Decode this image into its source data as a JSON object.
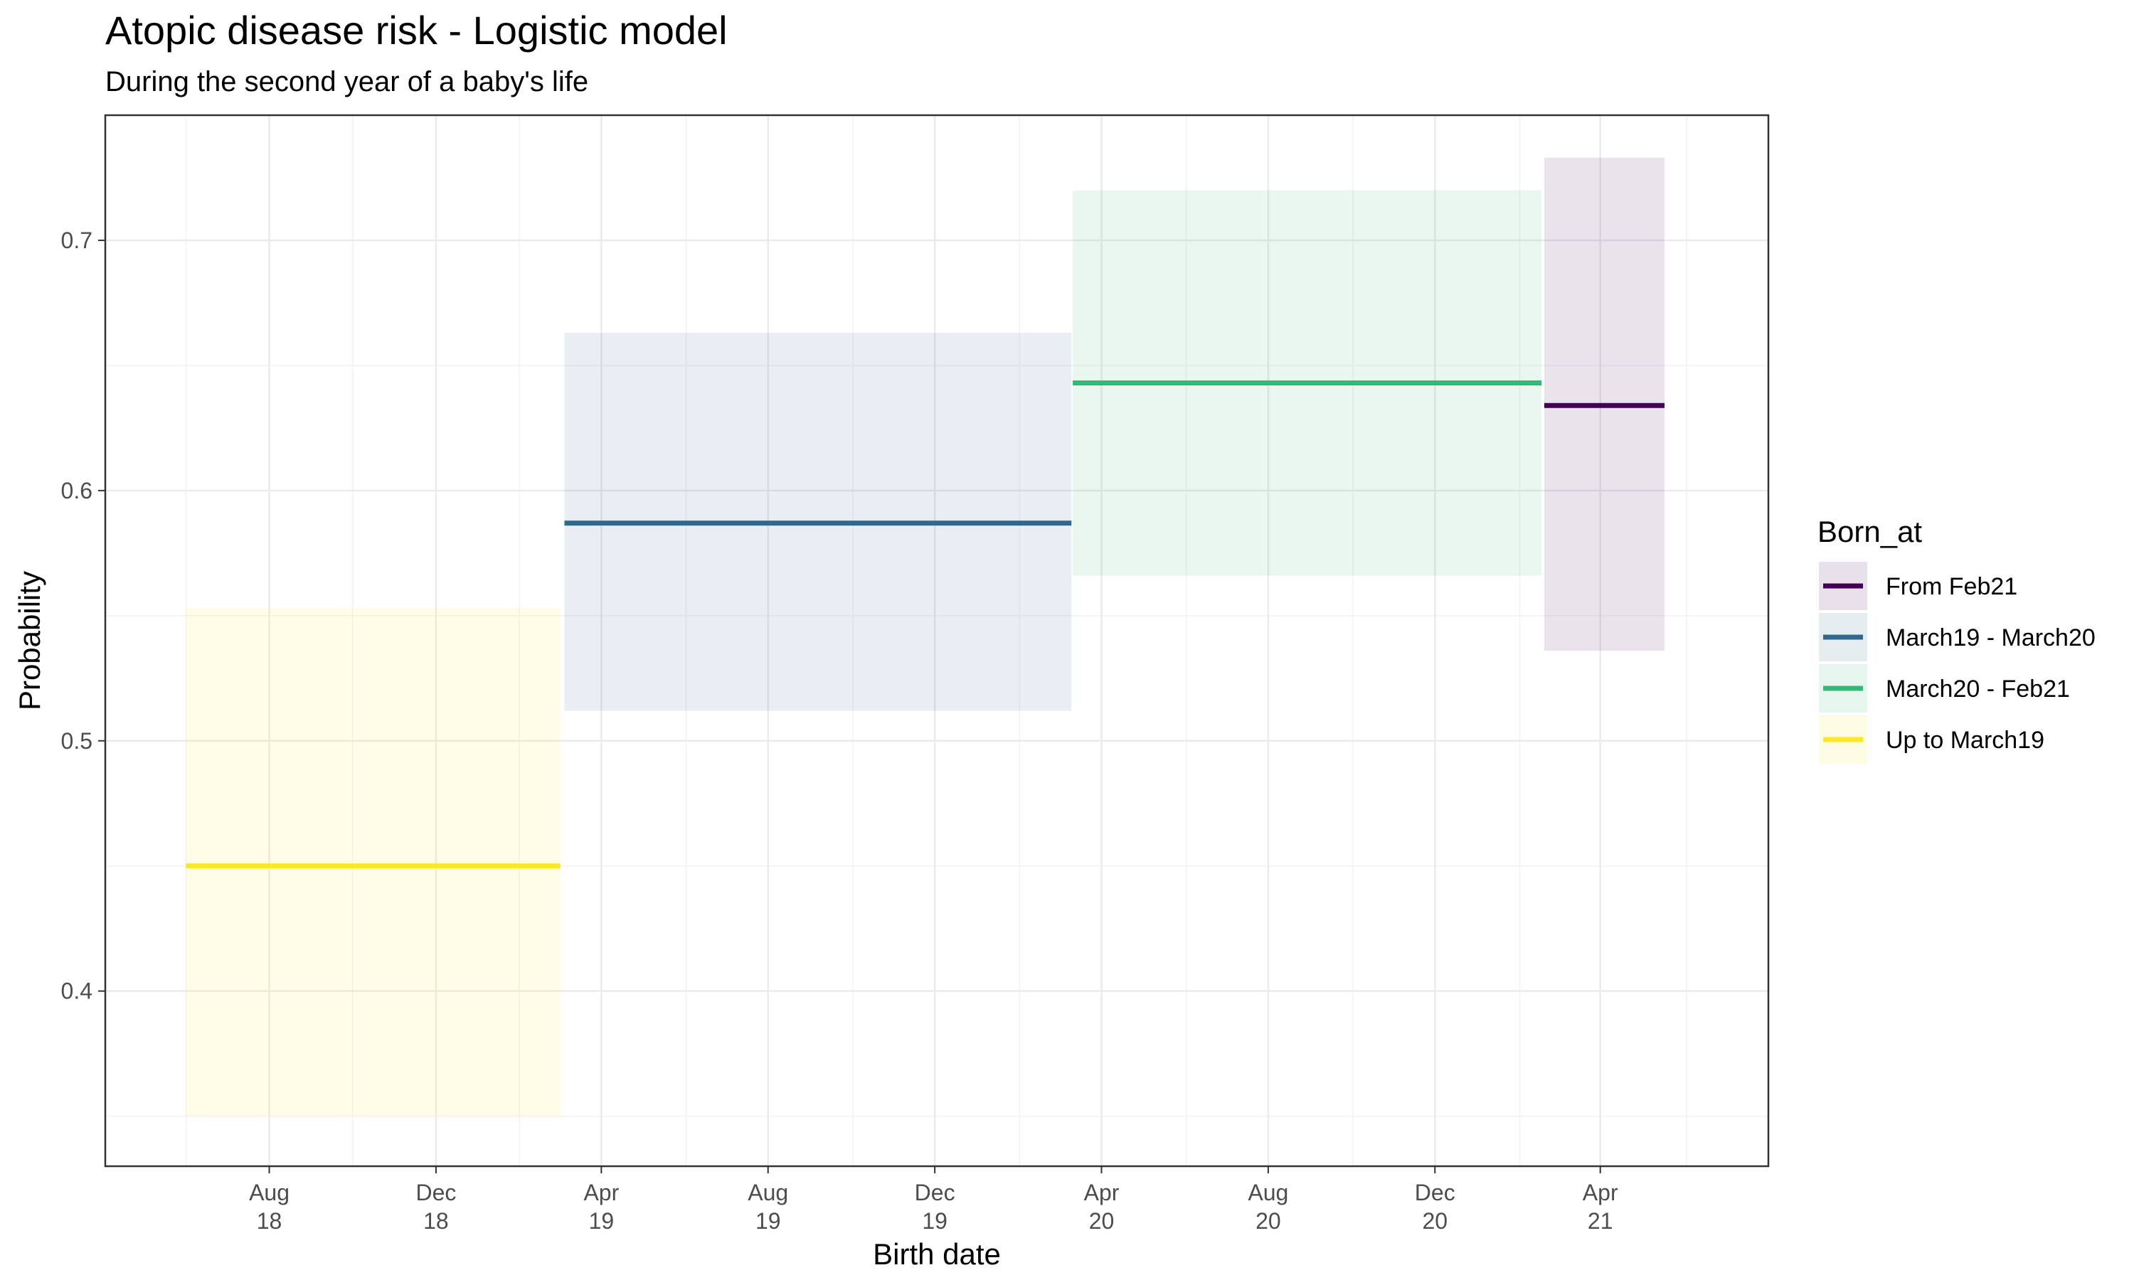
{
  "chart_data": {
    "type": "line",
    "title": "Atopic disease risk - Logistic model",
    "subtitle": "During the second year of a baby's life",
    "xlabel": "Birth date",
    "ylabel": "Probability",
    "ylim": [
      0.33,
      0.75
    ],
    "xlim": [
      "2018-04-03",
      "2021-08-02"
    ],
    "y_ticks": [
      0.4,
      0.5,
      0.6,
      0.7
    ],
    "y_tick_labels": [
      "0.4",
      "0.5",
      "0.6",
      "0.7"
    ],
    "x_ticks": [
      {
        "date": "2018-08-01",
        "label": [
          "Aug",
          "18"
        ]
      },
      {
        "date": "2018-12-01",
        "label": [
          "Dec",
          "18"
        ]
      },
      {
        "date": "2019-04-01",
        "label": [
          "Apr",
          "19"
        ]
      },
      {
        "date": "2019-08-01",
        "label": [
          "Aug",
          "19"
        ]
      },
      {
        "date": "2019-12-01",
        "label": [
          "Dec",
          "19"
        ]
      },
      {
        "date": "2020-04-01",
        "label": [
          "Apr",
          "20"
        ]
      },
      {
        "date": "2020-08-01",
        "label": [
          "Aug",
          "20"
        ]
      },
      {
        "date": "2020-12-01",
        "label": [
          "Dec",
          "20"
        ]
      },
      {
        "date": "2021-04-01",
        "label": [
          "Apr",
          "21"
        ]
      }
    ],
    "grid": true,
    "legend": {
      "title": "Born_at",
      "position": "right"
    },
    "series": [
      {
        "name": "From Feb21",
        "color": "#440154",
        "x_start": "2021-02-19",
        "x_end": "2021-05-18",
        "estimate": 0.634,
        "lower": 0.536,
        "upper": 0.733
      },
      {
        "name": "March19 - March20",
        "color": "#31688E",
        "x_start": "2019-03-05",
        "x_end": "2020-03-10",
        "estimate": 0.587,
        "lower": 0.512,
        "upper": 0.663
      },
      {
        "name": "March20 - Feb21",
        "color": "#35B779",
        "x_start": "2020-03-11",
        "x_end": "2021-02-17",
        "estimate": 0.643,
        "lower": 0.566,
        "upper": 0.72
      },
      {
        "name": "Up to March19",
        "color": "#FDE725",
        "x_start": "2018-06-01",
        "x_end": "2019-03-02",
        "estimate": 0.45,
        "lower": 0.35,
        "upper": 0.553
      }
    ]
  }
}
